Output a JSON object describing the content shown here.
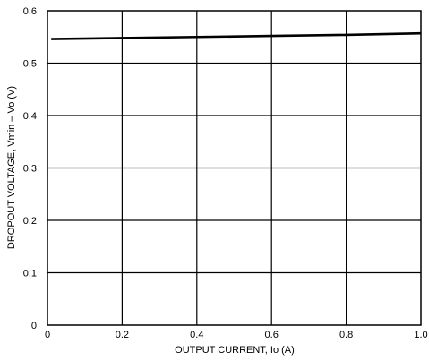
{
  "chart_data": {
    "type": "line",
    "xlabel": "OUTPUT CURRENT, Io (A)",
    "ylabel": "DROPOUT VOLTAGE, Vmin – Vo (V)",
    "xlim": [
      0,
      1.0
    ],
    "ylim": [
      0,
      0.6
    ],
    "grid": true,
    "x_tick_labels": [
      "0",
      "0.2",
      "0.4",
      "0.6",
      "0.8",
      "1.0"
    ],
    "y_tick_labels": [
      "0",
      "0.1",
      "0.2",
      "0.3",
      "0.4",
      "0.5",
      "0.6"
    ],
    "series": [
      {
        "x": [
          0.01,
          0.2,
          0.4,
          0.6,
          0.8,
          1.0
        ],
        "y": [
          0.546,
          0.548,
          0.55,
          0.552,
          0.554,
          0.557
        ]
      }
    ]
  }
}
